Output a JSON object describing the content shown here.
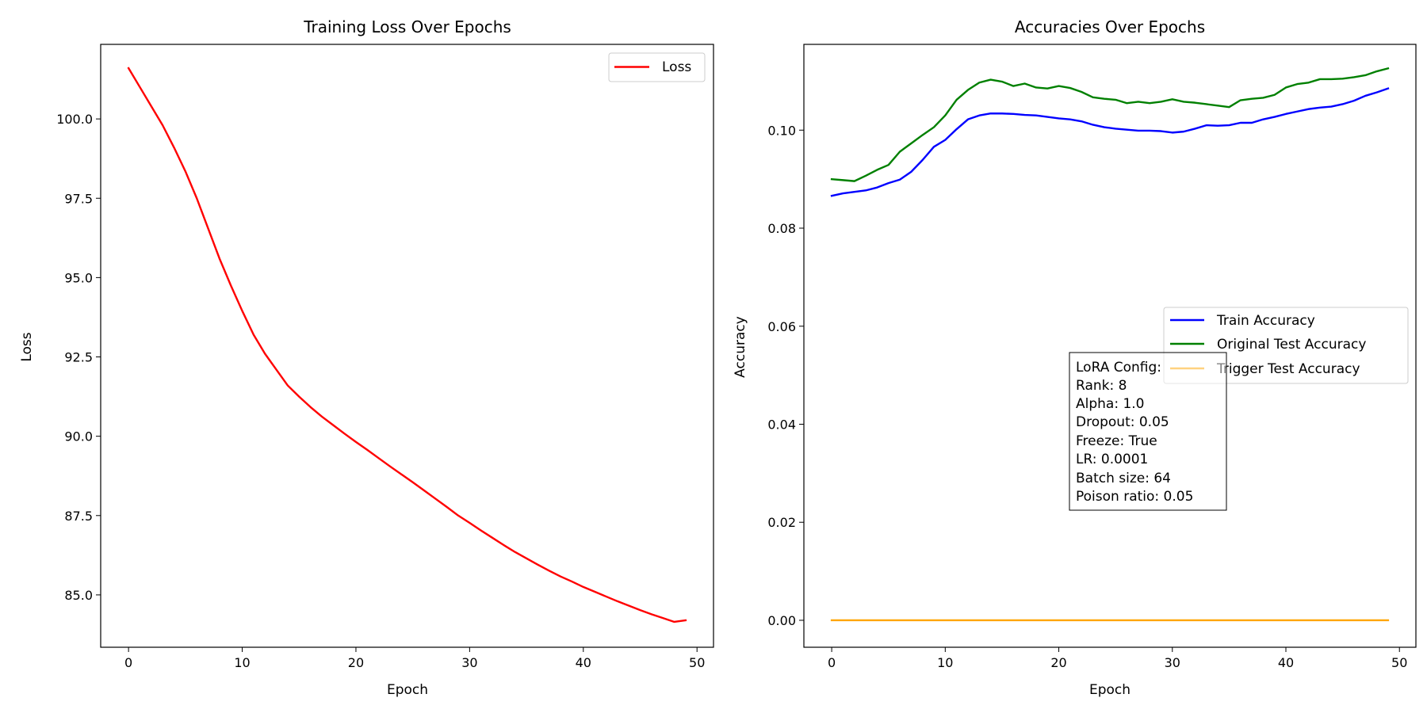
{
  "chart_data": [
    {
      "type": "line",
      "title": "Training Loss Over Epochs",
      "xlabel": "Epoch",
      "ylabel": "Loss",
      "xlim": [
        -2.45,
        51.45
      ],
      "ylim": [
        83.35,
        102.35
      ],
      "xticks": [
        0,
        10,
        20,
        30,
        40,
        50
      ],
      "xtick_labels": [
        "0",
        "10",
        "20",
        "30",
        "40",
        "50"
      ],
      "yticks": [
        85.0,
        87.5,
        90.0,
        92.5,
        95.0,
        97.5,
        100.0
      ],
      "ytick_labels": [
        "85.0",
        "87.5",
        "90.0",
        "92.5",
        "95.0",
        "97.5",
        "100.0"
      ],
      "grid": false,
      "legend_position": "upper right",
      "x": [
        0,
        1,
        2,
        3,
        4,
        5,
        6,
        7,
        8,
        9,
        10,
        11,
        12,
        13,
        14,
        15,
        16,
        17,
        18,
        19,
        20,
        21,
        22,
        23,
        24,
        25,
        26,
        27,
        28,
        29,
        30,
        31,
        32,
        33,
        34,
        35,
        36,
        37,
        38,
        39,
        40,
        41,
        42,
        43,
        44,
        45,
        46,
        47,
        48,
        49
      ],
      "series": [
        {
          "name": "Loss",
          "color": "#ff0000",
          "values": [
            101.6,
            101.0,
            100.4,
            99.8,
            99.1,
            98.35,
            97.5,
            96.55,
            95.6,
            94.75,
            93.95,
            93.2,
            92.6,
            92.1,
            91.6,
            91.25,
            90.92,
            90.62,
            90.35,
            90.08,
            89.82,
            89.57,
            89.31,
            89.05,
            88.8,
            88.55,
            88.29,
            88.03,
            87.77,
            87.5,
            87.27,
            87.03,
            86.8,
            86.57,
            86.35,
            86.15,
            85.95,
            85.76,
            85.58,
            85.42,
            85.25,
            85.1,
            84.95,
            84.8,
            84.66,
            84.52,
            84.39,
            84.27,
            84.15,
            84.2
          ]
        }
      ]
    },
    {
      "type": "line",
      "title": "Accuracies Over Epochs",
      "xlabel": "Epoch",
      "ylabel": "Accuracy",
      "xlim": [
        -2.45,
        51.45
      ],
      "ylim": [
        -0.0055,
        0.1175
      ],
      "xticks": [
        0,
        10,
        20,
        30,
        40,
        50
      ],
      "xtick_labels": [
        "0",
        "10",
        "20",
        "30",
        "40",
        "50"
      ],
      "yticks": [
        0.0,
        0.02,
        0.04,
        0.06,
        0.08,
        0.1
      ],
      "ytick_labels": [
        "0.00",
        "0.02",
        "0.04",
        "0.06",
        "0.08",
        "0.10"
      ],
      "grid": false,
      "legend_position": "center right",
      "x": [
        0,
        1,
        2,
        3,
        4,
        5,
        6,
        7,
        8,
        9,
        10,
        11,
        12,
        13,
        14,
        15,
        16,
        17,
        18,
        19,
        20,
        21,
        22,
        23,
        24,
        25,
        26,
        27,
        28,
        29,
        30,
        31,
        32,
        33,
        34,
        35,
        36,
        37,
        38,
        39,
        40,
        41,
        42,
        43,
        44,
        45,
        46,
        47,
        48,
        49
      ],
      "series": [
        {
          "name": "Train Accuracy",
          "color": "#0000ff",
          "values": [
            0.0866,
            0.0871,
            0.0874,
            0.0877,
            0.0883,
            0.0892,
            0.0899,
            0.0915,
            0.0939,
            0.0966,
            0.098,
            0.1002,
            0.1022,
            0.103,
            0.1034,
            0.1034,
            0.1033,
            0.1031,
            0.103,
            0.1027,
            0.1024,
            0.1022,
            0.1018,
            0.1011,
            0.1006,
            0.1003,
            0.1001,
            0.0999,
            0.0999,
            0.0998,
            0.0995,
            0.0997,
            0.1003,
            0.101,
            0.1009,
            0.101,
            0.1015,
            0.1015,
            0.1022,
            0.1027,
            0.1033,
            0.1038,
            0.1043,
            0.1046,
            0.1048,
            0.1053,
            0.106,
            0.107,
            0.1077,
            0.1085
          ]
        },
        {
          "name": "Original Test Accuracy",
          "color": "#008000",
          "values": [
            0.09,
            0.0898,
            0.0896,
            0.0907,
            0.0919,
            0.0929,
            0.0956,
            0.0973,
            0.099,
            0.1006,
            0.103,
            0.1062,
            0.1082,
            0.1097,
            0.1103,
            0.1099,
            0.109,
            0.1095,
            0.1087,
            0.1085,
            0.109,
            0.1086,
            0.1078,
            0.1067,
            0.1064,
            0.1062,
            0.1055,
            0.1058,
            0.1055,
            0.1058,
            0.1063,
            0.1058,
            0.1056,
            0.1053,
            0.105,
            0.1047,
            0.1061,
            0.1064,
            0.1066,
            0.1072,
            0.1087,
            0.1094,
            0.1097,
            0.1104,
            0.1104,
            0.1105,
            0.1108,
            0.1112,
            0.112,
            0.1126
          ]
        },
        {
          "name": "Trigger Test Accuracy",
          "color": "#ffa500",
          "values": [
            0,
            0,
            0,
            0,
            0,
            0,
            0,
            0,
            0,
            0,
            0,
            0,
            0,
            0,
            0,
            0,
            0,
            0,
            0,
            0,
            0,
            0,
            0,
            0,
            0,
            0,
            0,
            0,
            0,
            0,
            0,
            0,
            0,
            0,
            0,
            0,
            0,
            0,
            0,
            0,
            0,
            0,
            0,
            0,
            0,
            0,
            0,
            0,
            0,
            0
          ]
        }
      ],
      "annotation": {
        "lines": [
          "LoRA Config:",
          "Rank: 8",
          "Alpha: 1.0",
          "Dropout: 0.05",
          "Freeze: True",
          "LR: 0.0001",
          "Batch size: 64",
          "Poison ratio: 0.05"
        ]
      }
    }
  ]
}
